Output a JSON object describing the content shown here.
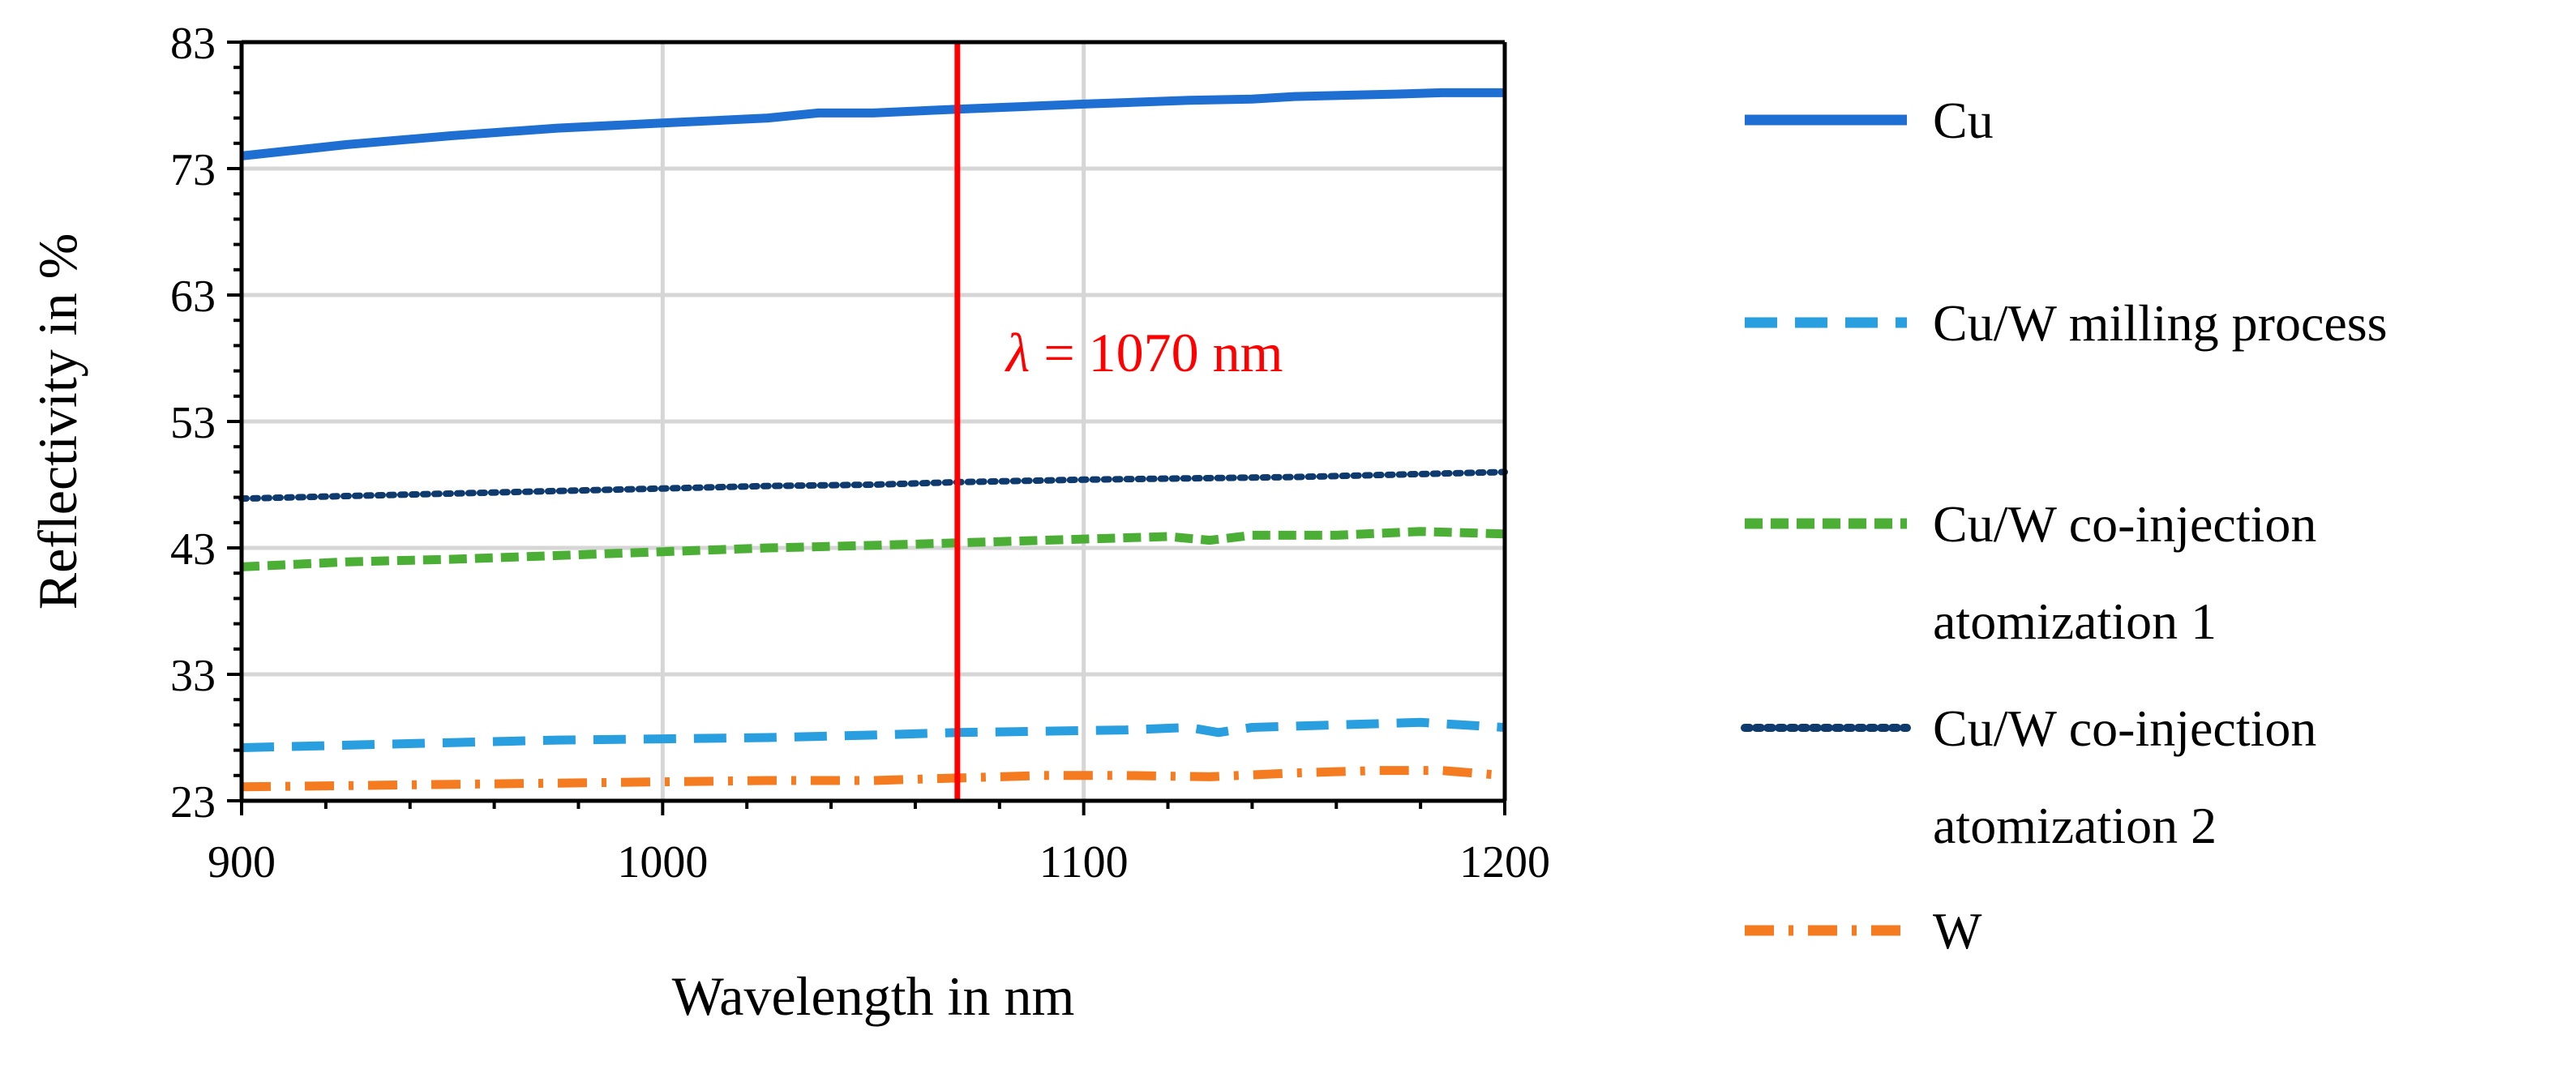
{
  "chart_data": {
    "type": "line",
    "title": "",
    "xlabel": "Wavelength in nm",
    "ylabel": "Reflectivity in %",
    "xlim": [
      900,
      1200
    ],
    "ylim": [
      23,
      83
    ],
    "x_ticks": [
      900,
      1000,
      1100,
      1200
    ],
    "y_ticks": [
      23,
      33,
      43,
      53,
      63,
      73,
      83
    ],
    "grid": true,
    "legend_position": "right",
    "annotation": {
      "lambda_symbol": "λ",
      "text": " = 1070 nm",
      "x": 1070,
      "color": "#ff0000"
    },
    "series": [
      {
        "name": "Cu",
        "color": "#1f6fd2",
        "style": "solid",
        "x": [
          900,
          925,
          950,
          975,
          1000,
          1025,
          1037,
          1050,
          1070,
          1085,
          1100,
          1125,
          1140,
          1150,
          1175,
          1185,
          1200
        ],
        "values": [
          74.0,
          74.9,
          75.6,
          76.2,
          76.6,
          77.0,
          77.4,
          77.4,
          77.7,
          77.9,
          78.1,
          78.4,
          78.5,
          78.7,
          78.9,
          79.0,
          79.0
        ]
      },
      {
        "name": "Cu/W milling process",
        "color": "#2a9fe0",
        "style": "dashed",
        "x": [
          900,
          925,
          950,
          975,
          1000,
          1025,
          1050,
          1070,
          1090,
          1110,
          1125,
          1132,
          1140,
          1160,
          1180,
          1200
        ],
        "values": [
          27.2,
          27.4,
          27.6,
          27.8,
          27.9,
          28.0,
          28.2,
          28.4,
          28.5,
          28.6,
          28.8,
          28.4,
          28.8,
          29.0,
          29.2,
          28.8
        ]
      },
      {
        "name": "Cu/W co-injection atomization 1",
        "color": "#4caf35",
        "style": "dashed-short",
        "x": [
          900,
          925,
          950,
          975,
          1000,
          1025,
          1050,
          1070,
          1100,
          1120,
          1130,
          1140,
          1160,
          1180,
          1200
        ],
        "values": [
          41.5,
          41.9,
          42.1,
          42.4,
          42.7,
          43.0,
          43.2,
          43.4,
          43.7,
          43.9,
          43.6,
          44.0,
          44.0,
          44.3,
          44.1
        ]
      },
      {
        "name": "Cu/W co-injection atomization 2",
        "color": "#0e3a6e",
        "style": "dotted",
        "x": [
          900,
          925,
          950,
          975,
          1000,
          1025,
          1050,
          1070,
          1100,
          1125,
          1150,
          1175,
          1200
        ],
        "values": [
          46.9,
          47.1,
          47.3,
          47.5,
          47.7,
          47.9,
          48.0,
          48.2,
          48.4,
          48.5,
          48.6,
          48.8,
          49.0
        ]
      },
      {
        "name": "W",
        "color": "#f47b20",
        "style": "dashdot",
        "x": [
          900,
          925,
          950,
          975,
          1000,
          1025,
          1050,
          1070,
          1090,
          1110,
          1130,
          1150,
          1170,
          1185,
          1200
        ],
        "values": [
          24.1,
          24.2,
          24.3,
          24.4,
          24.5,
          24.6,
          24.6,
          24.8,
          25.0,
          25.0,
          24.9,
          25.2,
          25.4,
          25.4,
          25.0
        ]
      }
    ],
    "legend": [
      {
        "lines": [
          "Cu"
        ]
      },
      {
        "lines": [
          "Cu/W milling process"
        ]
      },
      {
        "lines": [
          "Cu/W co-injection",
          "atomization 1"
        ]
      },
      {
        "lines": [
          "Cu/W co-injection",
          "atomization 2"
        ]
      },
      {
        "lines": [
          "W"
        ]
      }
    ]
  }
}
